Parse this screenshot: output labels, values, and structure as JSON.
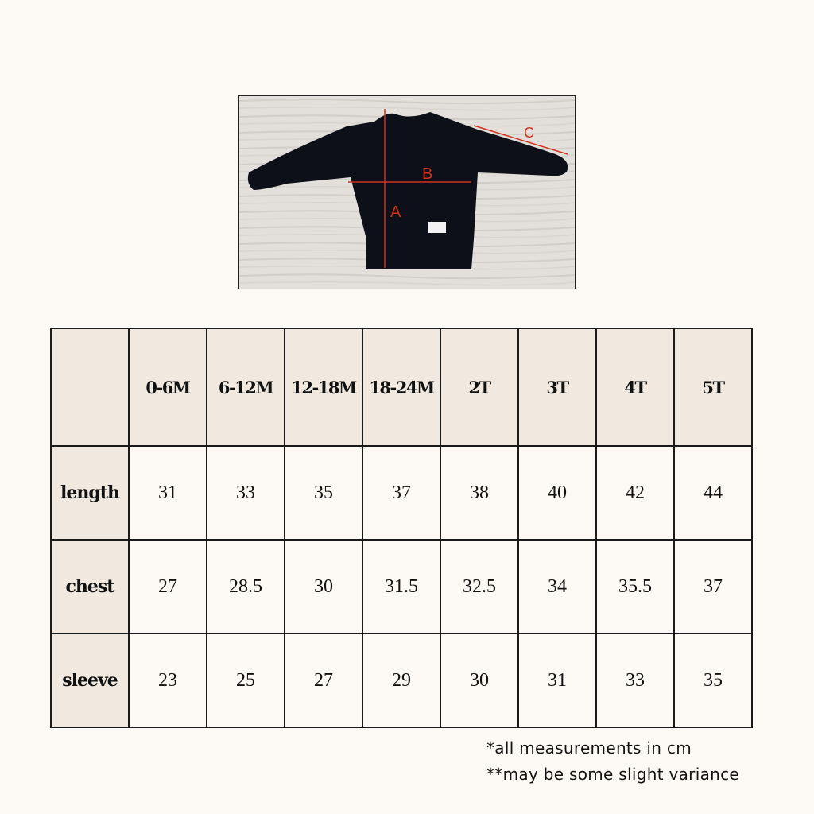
{
  "photo": {
    "markers": {
      "a": "A",
      "b": "B",
      "c": "C"
    },
    "marker_color": "#d0321e"
  },
  "table": {
    "header": [
      "",
      "0-6M",
      "6-12M",
      "12-18M",
      "18-24M",
      "2T",
      "3T",
      "4T",
      "5T"
    ],
    "rows": [
      {
        "label": "length",
        "values": [
          "31",
          "33",
          "35",
          "37",
          "38",
          "40",
          "42",
          "44"
        ]
      },
      {
        "label": "chest",
        "values": [
          "27",
          "28.5",
          "30",
          "31.5",
          "32.5",
          "34",
          "35.5",
          "37"
        ]
      },
      {
        "label": "sleeve",
        "values": [
          "23",
          "25",
          "27",
          "29",
          "30",
          "31",
          "33",
          "35"
        ]
      }
    ]
  },
  "notes": [
    "*all measurements in cm",
    "**may be some slight variance"
  ]
}
